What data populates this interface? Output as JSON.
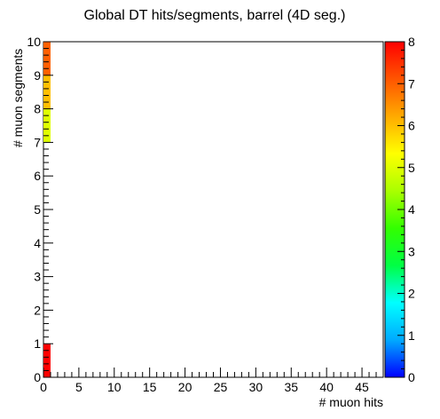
{
  "chart_data": {
    "type": "heatmap",
    "title": "Global DT hits/segments, barrel (4D seg.)",
    "xlabel": "# muon hits",
    "ylabel": "# muon segments",
    "xlim": [
      0,
      48
    ],
    "ylim": [
      0,
      10
    ],
    "x_ticks": [
      0,
      5,
      10,
      15,
      20,
      25,
      30,
      35,
      40,
      45
    ],
    "y_ticks": [
      0,
      1,
      2,
      3,
      4,
      5,
      6,
      7,
      8,
      9,
      10
    ],
    "z_range": [
      0,
      8
    ],
    "z_ticks": [
      0,
      1,
      2,
      3,
      4,
      5,
      6,
      7,
      8
    ],
    "palette": "rainbow",
    "palette_colors": [
      "#0000ff",
      "#00aaff",
      "#00ffff",
      "#00ff44",
      "#33ff00",
      "#aaff00",
      "#ffff00",
      "#ffaa00",
      "#ff5500",
      "#ff0000"
    ],
    "cells": [
      {
        "x": [
          0,
          1
        ],
        "y": [
          0,
          1
        ],
        "value": 8
      },
      {
        "x": [
          0,
          1
        ],
        "y": [
          7,
          8
        ],
        "value": 5
      },
      {
        "x": [
          0,
          1
        ],
        "y": [
          8,
          9
        ],
        "value": 6
      },
      {
        "x": [
          0,
          1
        ],
        "y": [
          9,
          10
        ],
        "value": 7
      }
    ]
  }
}
